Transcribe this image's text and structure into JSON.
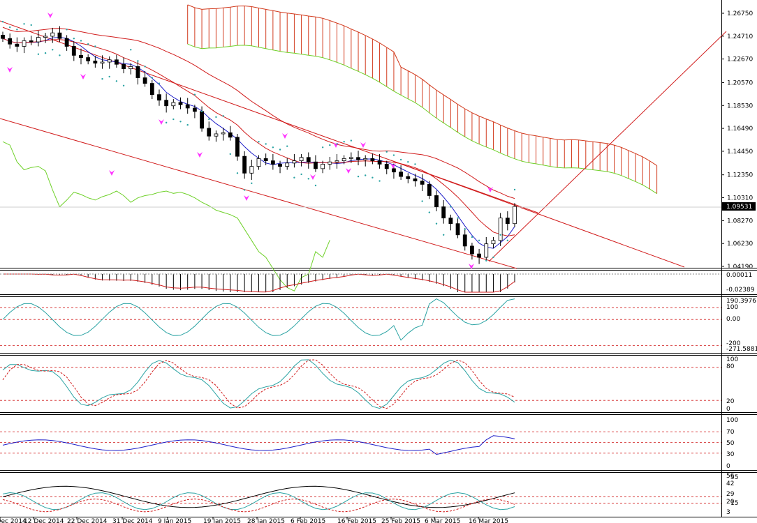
{
  "colors": {
    "background": "#ffffff",
    "candle_body_up": "#ffffff",
    "candle_body_down": "#000000",
    "ichimoku_cloud": "#d23b1e",
    "ichimoku_span_b": "#6fd12a",
    "trend_lines": "#d11c1c",
    "blue_line": "#1d1dc8",
    "teal_line": "#2aa3a3",
    "red_dashed": "#d11c1c",
    "markers": "#ff33ff"
  },
  "price_panel": {
    "price_levels": [
      "1.26750",
      "1.24710",
      "1.22670",
      "1.20570",
      "1.18530",
      "1.16490",
      "1.14450",
      "1.12350",
      "1.10310",
      "1.08270",
      "1.06230",
      "1.04190"
    ],
    "current_price": "1.09531",
    "ylim": [
      1.033,
      1.277
    ]
  },
  "macd_panel": {
    "labels": [
      "0.00011",
      "-0.02389"
    ]
  },
  "cci_panel": {
    "labels": [
      "190.3976",
      "100",
      "0.00",
      "-200",
      "-271.5881"
    ]
  },
  "stoch_panel": {
    "labels": [
      "100",
      "80",
      "20",
      "0"
    ]
  },
  "rsi_panel": {
    "labels": [
      "100",
      "70",
      "50",
      "30",
      "0"
    ]
  },
  "adx_panel": {
    "labels": [
      "56",
      "55",
      "42",
      "29",
      "20",
      "15",
      "3"
    ]
  },
  "time_labels": [
    "3 Dec 2014",
    "12 Dec 2014",
    "22 Dec 2014",
    "31 Dec 2014",
    "9 Jan 2015",
    "19 Jan 2015",
    "28 Jan 2015",
    "6 Feb 2015",
    "16 Feb 2015",
    "25 Feb 2015",
    "6 Mar 2015",
    "16 Mar 2015"
  ],
  "chart_data": {
    "type": "candlestick",
    "instrument": "EURUSD",
    "candles_close": [
      1.245,
      1.24,
      1.238,
      1.243,
      1.242,
      1.246,
      1.247,
      1.25,
      1.245,
      1.238,
      1.23,
      1.228,
      1.225,
      1.223,
      1.224,
      1.226,
      1.222,
      1.218,
      1.22,
      1.21,
      1.205,
      1.195,
      1.19,
      1.185,
      1.188,
      1.186,
      1.183,
      1.18,
      1.165,
      1.158,
      1.16,
      1.161,
      1.157,
      1.14,
      1.125,
      1.131,
      1.138,
      1.136,
      1.133,
      1.131,
      1.134,
      1.136,
      1.139,
      1.135,
      1.129,
      1.133,
      1.135,
      1.136,
      1.138,
      1.139,
      1.137,
      1.138,
      1.136,
      1.133,
      1.129,
      1.126,
      1.122,
      1.12,
      1.118,
      1.115,
      1.105,
      1.095,
      1.085,
      1.08,
      1.07,
      1.06,
      1.053,
      1.05,
      1.062,
      1.065,
      1.085,
      1.08,
      1.0953
    ]
  }
}
